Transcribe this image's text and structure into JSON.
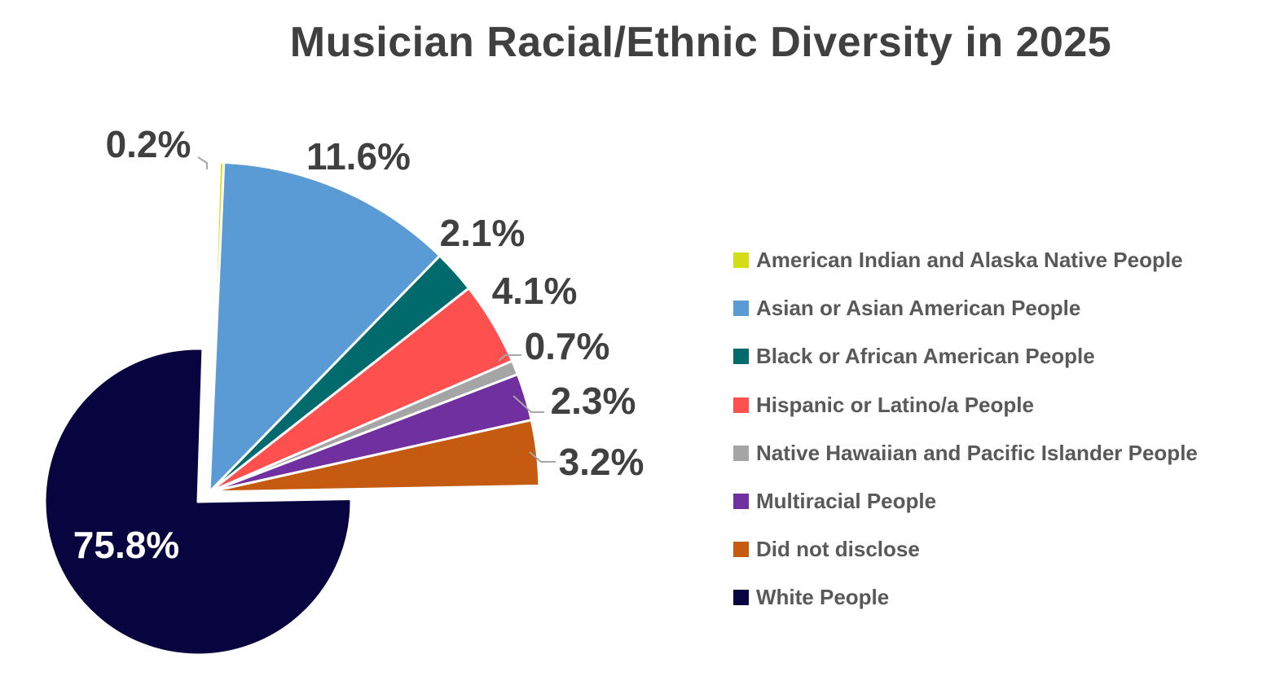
{
  "chart_data": {
    "type": "pie",
    "title": "Musician Racial/Ethnic Diversity in 2025",
    "legend_position": "right",
    "slices": [
      {
        "name": "American Indian and Alaska Native People",
        "value": 0.2,
        "label": "0.2%",
        "color": "#D4DE16",
        "exploded": true
      },
      {
        "name": "Asian or Asian American People",
        "value": 11.6,
        "label": "11.6%",
        "color": "#5B9BD5",
        "exploded": true
      },
      {
        "name": "Black or African American People",
        "value": 2.1,
        "label": "2.1%",
        "color": "#006A6D",
        "exploded": true
      },
      {
        "name": "Hispanic or Latino/a People",
        "value": 4.1,
        "label": "4.1%",
        "color": "#FF5050",
        "exploded": true
      },
      {
        "name": "Native Hawaiian and Pacific Islander People",
        "value": 0.7,
        "label": "0.7%",
        "color": "#A5A5A5",
        "exploded": true
      },
      {
        "name": "Multiracial People",
        "value": 2.3,
        "label": "2.3%",
        "color": "#7030A0",
        "exploded": true
      },
      {
        "name": "Did not disclose",
        "value": 3.2,
        "label": "3.2%",
        "color": "#C55A11",
        "exploded": true
      },
      {
        "name": "White People",
        "value": 75.8,
        "label": "75.8%",
        "color": "#070440",
        "exploded": false
      }
    ]
  }
}
